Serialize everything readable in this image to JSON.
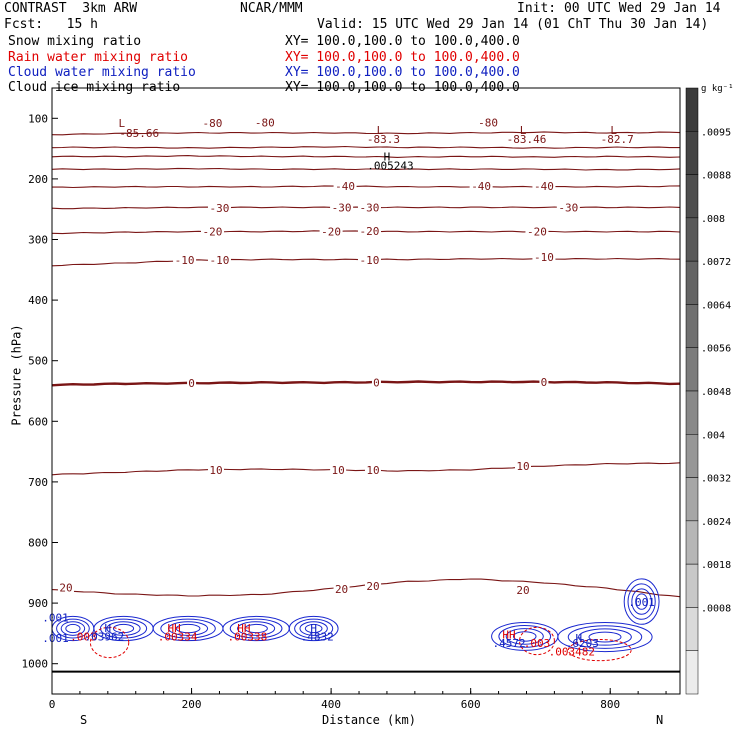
{
  "header": {
    "left_line1": "CONTRAST  3km ARW",
    "center_line1": "NCAR/MMM",
    "right_line1": "Init: 00 UTC Wed 29 Jan 14",
    "left_line2": "Fcst:   15 h",
    "right_line2": "Valid: 15 UTC Wed 29 Jan 14 (01 ChT Thu 30 Jan 14)",
    "fields": [
      {
        "name": "Snow mixing ratio",
        "xy": "XY= 100.0,100.0 to 100.0,400.0",
        "color": "#000000"
      },
      {
        "name": "Rain water mixing ratio",
        "xy": "XY= 100.0,100.0 to 100.0,400.0",
        "color": "#e00000"
      },
      {
        "name": "Cloud water mixing ratio",
        "xy": "XY= 100.0,100.0 to 100.0,400.0",
        "color": "#1020c0"
      },
      {
        "name": "Cloud ice mixing ratio",
        "xy": "XY= 100.0,100.0 to 100.0,400.0",
        "color": "#000000"
      }
    ]
  },
  "colors": {
    "temperature": "#7a1515",
    "cloud_water": "#1a28d0",
    "rain": "#e00000",
    "axis": "#000000"
  },
  "chart_data": {
    "type": "contour-cross-section",
    "xlabel": "Distance (km)",
    "ylabel": "Pressure (hPa)",
    "xlim": [
      0,
      900
    ],
    "ylim": [
      1050,
      50
    ],
    "xticks": [
      0,
      200,
      400,
      600,
      800
    ],
    "yticks": [
      100,
      200,
      300,
      400,
      500,
      600,
      700,
      800,
      900,
      1000
    ],
    "endpoint_labels": {
      "left": "S",
      "right": "N"
    },
    "temperature_contours": [
      {
        "level": -80,
        "y": [
          127,
          125,
          124,
          124,
          124,
          125,
          124,
          123,
          124,
          123
        ]
      },
      {
        "level": -70,
        "y": [
          148,
          148,
          149,
          148,
          147,
          148,
          148,
          149,
          148,
          148
        ]
      },
      {
        "level": -60,
        "y": [
          163,
          163,
          162,
          163,
          163,
          164,
          163,
          164,
          163,
          164
        ]
      },
      {
        "level": -50,
        "y": [
          184,
          184,
          183,
          184,
          184,
          184,
          184,
          184,
          185,
          184
        ]
      },
      {
        "level": -40,
        "y": [
          214,
          213,
          213,
          213,
          212,
          213,
          213,
          213,
          213,
          212
        ]
      },
      {
        "level": -30,
        "y": [
          249,
          248,
          247,
          247,
          247,
          247,
          247,
          247,
          247,
          247
        ]
      },
      {
        "level": -20,
        "y": [
          290,
          288,
          287,
          287,
          286,
          287,
          287,
          287,
          287,
          287
        ]
      },
      {
        "level": -10,
        "y": [
          343,
          339,
          334,
          333,
          333,
          333,
          332,
          332,
          332,
          332
        ]
      },
      {
        "level": 0,
        "y": [
          540,
          538,
          537,
          536,
          536,
          535,
          535,
          535,
          536,
          538
        ]
      },
      {
        "level": 10,
        "y": [
          688,
          684,
          680,
          679,
          680,
          682,
          680,
          674,
          670,
          669
        ]
      },
      {
        "level": 20,
        "y": [
          878,
          885,
          888,
          886,
          876,
          865,
          860,
          866,
          876,
          890
        ]
      }
    ],
    "contour_labels": [
      {
        "text": "-80",
        "x": 230,
        "y": 108
      },
      {
        "text": "-80",
        "x": 305,
        "y": 107
      },
      {
        "text": "-80",
        "x": 625,
        "y": 107
      },
      {
        "text": "-40",
        "x": 420,
        "y": 212
      },
      {
        "text": "-40",
        "x": 615,
        "y": 212
      },
      {
        "text": "-40",
        "x": 705,
        "y": 212
      },
      {
        "text": "-30",
        "x": 240,
        "y": 248
      },
      {
        "text": "-30",
        "x": 415,
        "y": 247
      },
      {
        "text": "-30",
        "x": 455,
        "y": 247
      },
      {
        "text": "-30",
        "x": 740,
        "y": 247
      },
      {
        "text": "-20",
        "x": 230,
        "y": 287
      },
      {
        "text": "-20",
        "x": 400,
        "y": 287
      },
      {
        "text": "-20",
        "x": 455,
        "y": 286
      },
      {
        "text": "-20",
        "x": 695,
        "y": 287
      },
      {
        "text": "-10",
        "x": 190,
        "y": 334
      },
      {
        "text": "-10",
        "x": 240,
        "y": 334
      },
      {
        "text": "-10",
        "x": 455,
        "y": 334
      },
      {
        "text": "-10",
        "x": 705,
        "y": 329
      },
      {
        "text": "0",
        "x": 200,
        "y": 537
      },
      {
        "text": "0",
        "x": 465,
        "y": 536
      },
      {
        "text": "0",
        "x": 705,
        "y": 535
      },
      {
        "text": "10",
        "x": 235,
        "y": 680
      },
      {
        "text": "10",
        "x": 410,
        "y": 680
      },
      {
        "text": "10",
        "x": 460,
        "y": 680
      },
      {
        "text": "10",
        "x": 675,
        "y": 674
      },
      {
        "text": "20",
        "x": 20,
        "y": 874
      },
      {
        "text": "20",
        "x": 415,
        "y": 877
      },
      {
        "text": "20",
        "x": 460,
        "y": 872
      },
      {
        "text": "20",
        "x": 675,
        "y": 878
      }
    ],
    "extrema_labels": [
      {
        "text": "L",
        "x": 100,
        "y": 108,
        "color": "#7a1515"
      },
      {
        "text": "-85.66",
        "x": 125,
        "y": 124,
        "color": "#7a1515"
      },
      {
        "text": "L",
        "x": 470,
        "y": 119,
        "color": "#7a1515"
      },
      {
        "text": "-83.3",
        "x": 475,
        "y": 134,
        "color": "#7a1515"
      },
      {
        "text": "L",
        "x": 675,
        "y": 119,
        "color": "#7a1515"
      },
      {
        "text": "-83.46",
        "x": 680,
        "y": 134,
        "color": "#7a1515"
      },
      {
        "text": "L",
        "x": 805,
        "y": 119,
        "color": "#7a1515"
      },
      {
        "text": "-82.7",
        "x": 810,
        "y": 134,
        "color": "#7a1515"
      },
      {
        "text": "H",
        "x": 480,
        "y": 163,
        "color": "#000000"
      },
      {
        "text": ".005243",
        "x": 485,
        "y": 178,
        "color": "#000000"
      },
      {
        "text": ".001",
        "x": 5,
        "y": 924,
        "color": "#1020c0"
      },
      {
        "text": ".001",
        "x": 5,
        "y": 958,
        "color": "#1020c0"
      },
      {
        "text": "H",
        "x": 80,
        "y": 941,
        "color": "#1020c0"
      },
      {
        "text": ".003",
        "x": 45,
        "y": 955,
        "color": "#e00000"
      },
      {
        "text": ".03962",
        "x": 75,
        "y": 955,
        "color": "#1020c0"
      },
      {
        "text": "HH",
        "x": 175,
        "y": 941,
        "color": "#e00000"
      },
      {
        "text": ".00334",
        "x": 180,
        "y": 955,
        "color": "#e00000"
      },
      {
        "text": "HH",
        "x": 275,
        "y": 941,
        "color": "#e00000"
      },
      {
        "text": ".00338",
        "x": 280,
        "y": 955,
        "color": "#e00000"
      },
      {
        "text": "H",
        "x": 375,
        "y": 941,
        "color": "#1020c0"
      },
      {
        "text": ".4832",
        "x": 380,
        "y": 955,
        "color": "#1020c0"
      },
      {
        "text": "HH",
        "x": 655,
        "y": 952,
        "color": "#e00000"
      },
      {
        "text": ".4572",
        "x": 655,
        "y": 966,
        "color": "#1020c0"
      },
      {
        "text": ".003",
        "x": 695,
        "y": 966,
        "color": "#e00000"
      },
      {
        "text": "H",
        "x": 755,
        "y": 958,
        "color": "#1020c0"
      },
      {
        "text": ".6203",
        "x": 760,
        "y": 966,
        "color": "#1020c0"
      },
      {
        "text": ".003482",
        "x": 745,
        "y": 980,
        "color": "#e00000"
      },
      {
        "text": ".001",
        "x": 845,
        "y": 898,
        "color": "#1020c0"
      }
    ],
    "cloud_water_regions": [
      {
        "x": [
          0,
          60
        ],
        "p": [
          922,
          962
        ]
      },
      {
        "x": [
          60,
          145
        ],
        "p": [
          922,
          962
        ]
      },
      {
        "x": [
          145,
          245
        ],
        "p": [
          922,
          962
        ]
      },
      {
        "x": [
          245,
          340
        ],
        "p": [
          922,
          962
        ]
      },
      {
        "x": [
          340,
          410
        ],
        "p": [
          922,
          962
        ]
      },
      {
        "x": [
          630,
          725
        ],
        "p": [
          932,
          978
        ]
      },
      {
        "x": [
          725,
          860
        ],
        "p": [
          932,
          980
        ]
      },
      {
        "x": [
          820,
          870
        ],
        "p": [
          860,
          935
        ]
      }
    ],
    "rain_regions": [
      {
        "x": [
          55,
          110
        ],
        "p": [
          940,
          990
        ]
      },
      {
        "x": [
          670,
          720
        ],
        "p": [
          940,
          985
        ]
      },
      {
        "x": [
          740,
          830
        ],
        "p": [
          960,
          995
        ]
      }
    ],
    "colorbar": {
      "unit": "g kg⁻¹",
      "labels": [
        ".0095",
        ".0088",
        ".008",
        ".0072",
        ".0064",
        ".0056",
        ".0048",
        ".004",
        ".0032",
        ".0024",
        ".0018",
        ".0008"
      ],
      "shades": [
        "#3b3b3b",
        "#444444",
        "#4e4e4e",
        "#595959",
        "#646464",
        "#707070",
        "#7c7c7c",
        "#898989",
        "#979797",
        "#a6a6a6",
        "#b6b6b6",
        "#c8c8c8",
        "#dadada",
        "#ececec"
      ]
    }
  }
}
